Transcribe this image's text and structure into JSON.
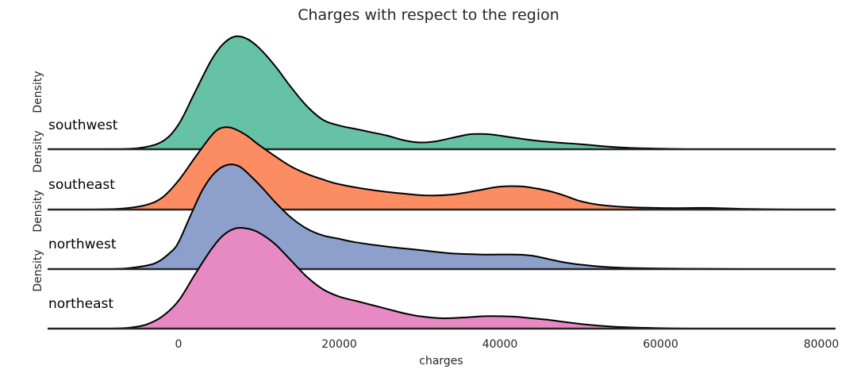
{
  "chart_data": {
    "type": "area",
    "title": "Charges with respect to the region",
    "xlabel": "charges",
    "ylabel": "Density",
    "xlim": [
      -13000,
      81000
    ],
    "xticks": [
      0,
      20000,
      40000,
      60000,
      80000
    ],
    "x_tick_labels": [
      "0",
      "20000",
      "40000",
      "60000",
      "80000"
    ],
    "grid": false,
    "series": [
      {
        "name": "southwest",
        "color": "#66c2a5",
        "points": [
          [
            -9500,
            0
          ],
          [
            -5000,
            0.01
          ],
          [
            -2000,
            0.07
          ],
          [
            0,
            0.22
          ],
          [
            2000,
            0.5
          ],
          [
            4000,
            0.78
          ],
          [
            5500,
            0.93
          ],
          [
            7000,
            1.0
          ],
          [
            8500,
            0.98
          ],
          [
            10000,
            0.9
          ],
          [
            12000,
            0.74
          ],
          [
            14000,
            0.55
          ],
          [
            16000,
            0.38
          ],
          [
            18000,
            0.26
          ],
          [
            20000,
            0.21
          ],
          [
            22000,
            0.18
          ],
          [
            24000,
            0.15
          ],
          [
            26000,
            0.12
          ],
          [
            28000,
            0.08
          ],
          [
            30000,
            0.06
          ],
          [
            32000,
            0.07
          ],
          [
            34000,
            0.1
          ],
          [
            36000,
            0.13
          ],
          [
            37500,
            0.135
          ],
          [
            39000,
            0.13
          ],
          [
            41000,
            0.11
          ],
          [
            44000,
            0.08
          ],
          [
            47000,
            0.06
          ],
          [
            50000,
            0.045
          ],
          [
            53000,
            0.025
          ],
          [
            56000,
            0.012
          ],
          [
            60000,
            0.005
          ],
          [
            63500,
            0.0
          ]
        ]
      },
      {
        "name": "southeast",
        "color": "#fc8d62",
        "points": [
          [
            -11000,
            0
          ],
          [
            -7000,
            0.01
          ],
          [
            -4000,
            0.05
          ],
          [
            -2000,
            0.13
          ],
          [
            0,
            0.31
          ],
          [
            2000,
            0.55
          ],
          [
            4000,
            0.78
          ],
          [
            5000,
            0.86
          ],
          [
            6000,
            0.88
          ],
          [
            7000,
            0.86
          ],
          [
            8500,
            0.79
          ],
          [
            10000,
            0.69
          ],
          [
            12000,
            0.57
          ],
          [
            14000,
            0.46
          ],
          [
            16000,
            0.38
          ],
          [
            18000,
            0.32
          ],
          [
            20000,
            0.27
          ],
          [
            24000,
            0.21
          ],
          [
            28000,
            0.17
          ],
          [
            31000,
            0.15
          ],
          [
            34000,
            0.16
          ],
          [
            37000,
            0.2
          ],
          [
            39500,
            0.24
          ],
          [
            41500,
            0.25
          ],
          [
            43500,
            0.24
          ],
          [
            46000,
            0.2
          ],
          [
            48000,
            0.15
          ],
          [
            50000,
            0.09
          ],
          [
            52000,
            0.055
          ],
          [
            55000,
            0.03
          ],
          [
            58000,
            0.02
          ],
          [
            62000,
            0.015
          ],
          [
            65000,
            0.018
          ],
          [
            67000,
            0.015
          ],
          [
            70000,
            0.008
          ],
          [
            73000,
            0.004
          ],
          [
            76500,
            0.0
          ]
        ]
      },
      {
        "name": "northwest",
        "color": "#8da0cb",
        "points": [
          [
            -8500,
            0
          ],
          [
            -6000,
            0.01
          ],
          [
            -3000,
            0.05
          ],
          [
            -1000,
            0.15
          ],
          [
            0,
            0.24
          ],
          [
            1500,
            0.48
          ],
          [
            3000,
            0.71
          ],
          [
            4500,
            0.86
          ],
          [
            6000,
            0.93
          ],
          [
            7500,
            0.92
          ],
          [
            9000,
            0.83
          ],
          [
            10500,
            0.72
          ],
          [
            12000,
            0.6
          ],
          [
            14000,
            0.46
          ],
          [
            16000,
            0.36
          ],
          [
            18000,
            0.3
          ],
          [
            20000,
            0.27
          ],
          [
            22000,
            0.24
          ],
          [
            26000,
            0.2
          ],
          [
            30000,
            0.17
          ],
          [
            34000,
            0.14
          ],
          [
            38000,
            0.13
          ],
          [
            42000,
            0.13
          ],
          [
            44000,
            0.12
          ],
          [
            46000,
            0.09
          ],
          [
            48000,
            0.06
          ],
          [
            50000,
            0.04
          ],
          [
            53000,
            0.02
          ],
          [
            56000,
            0.01
          ],
          [
            60000,
            0.005
          ],
          [
            65000,
            0.003
          ],
          [
            70000,
            0.0
          ]
        ]
      },
      {
        "name": "northeast",
        "color": "#e78ac3",
        "points": [
          [
            -8500,
            0
          ],
          [
            -6000,
            0.01
          ],
          [
            -4000,
            0.04
          ],
          [
            -2000,
            0.12
          ],
          [
            0,
            0.27
          ],
          [
            2000,
            0.52
          ],
          [
            4000,
            0.76
          ],
          [
            5500,
            0.9
          ],
          [
            7000,
            0.97
          ],
          [
            8500,
            0.97
          ],
          [
            10000,
            0.93
          ],
          [
            12000,
            0.82
          ],
          [
            14000,
            0.66
          ],
          [
            16000,
            0.5
          ],
          [
            18000,
            0.38
          ],
          [
            20000,
            0.31
          ],
          [
            22000,
            0.27
          ],
          [
            24000,
            0.23
          ],
          [
            26000,
            0.19
          ],
          [
            28000,
            0.15
          ],
          [
            30000,
            0.12
          ],
          [
            33000,
            0.1
          ],
          [
            36000,
            0.11
          ],
          [
            38000,
            0.12
          ],
          [
            40000,
            0.12
          ],
          [
            42000,
            0.115
          ],
          [
            44000,
            0.1
          ],
          [
            46000,
            0.085
          ],
          [
            48000,
            0.065
          ],
          [
            50000,
            0.045
          ],
          [
            53000,
            0.025
          ],
          [
            56000,
            0.012
          ],
          [
            60000,
            0.005
          ],
          [
            63500,
            0.0
          ]
        ]
      }
    ]
  }
}
